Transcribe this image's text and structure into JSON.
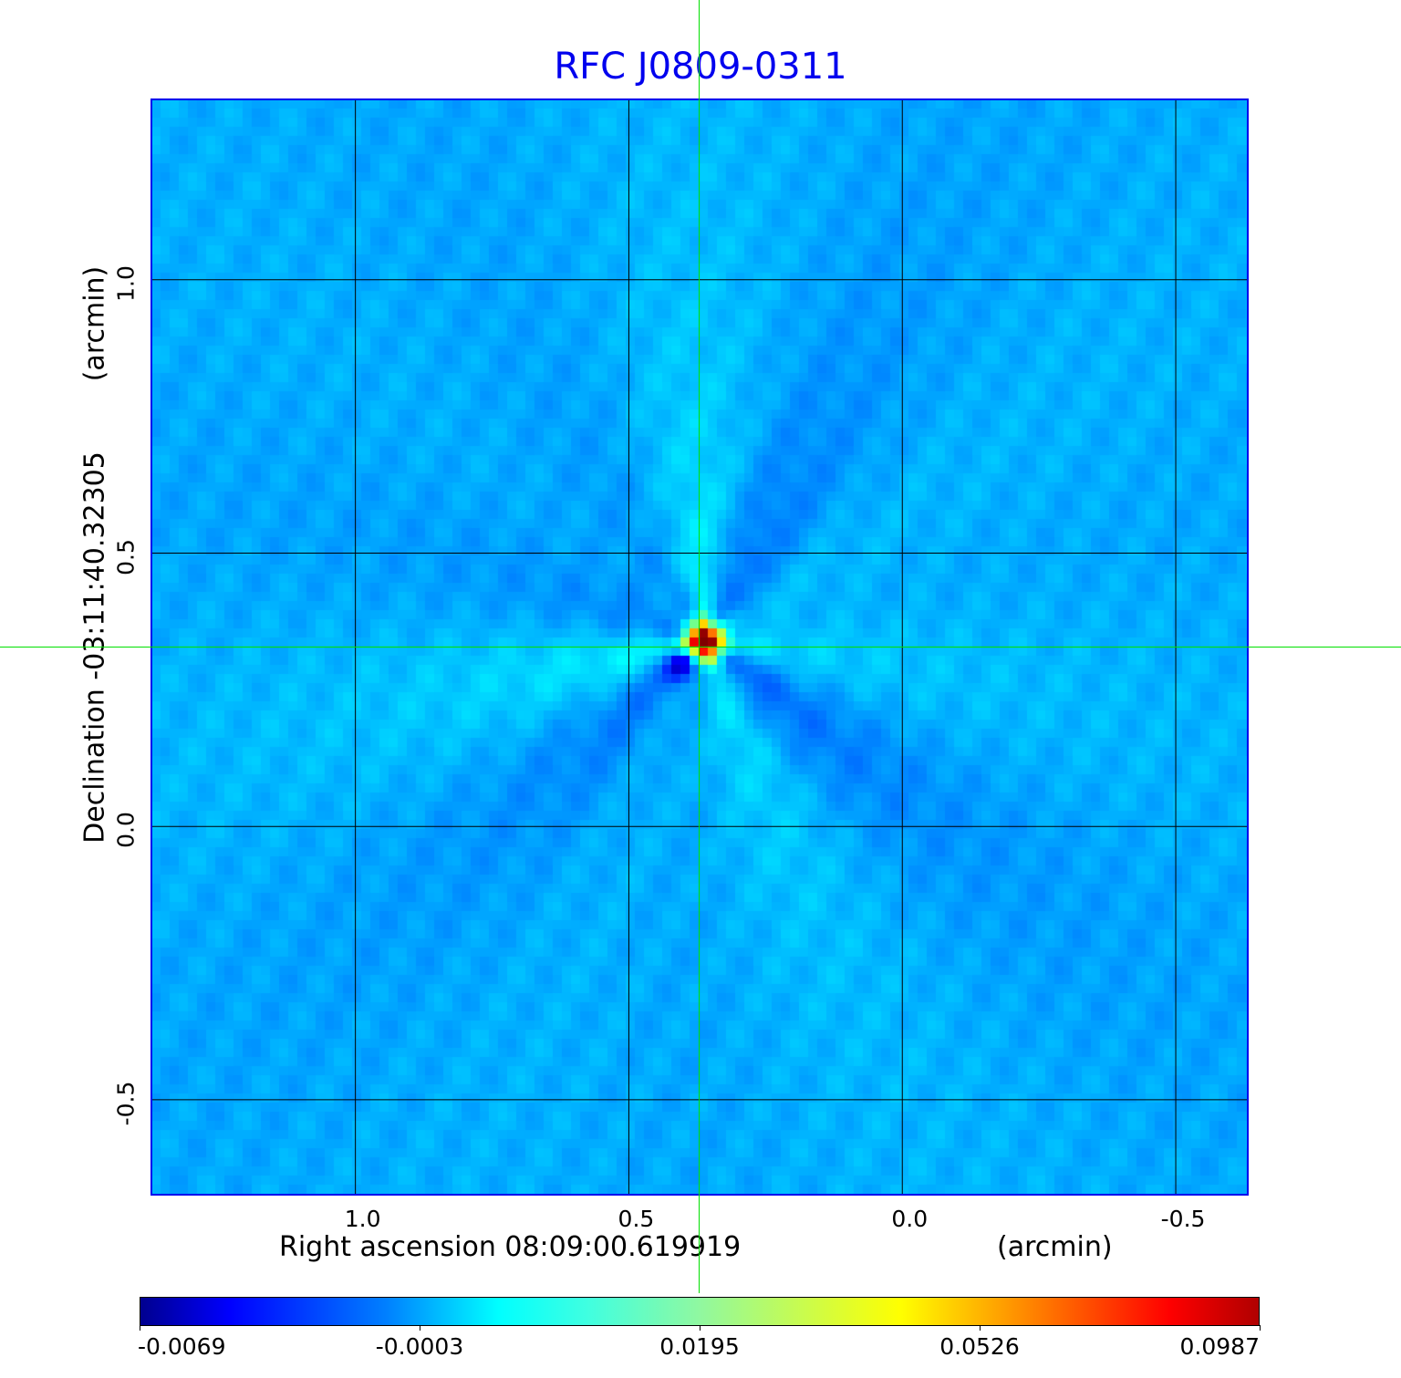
{
  "chart_data": {
    "type": "heatmap",
    "title": "RFC J0809-0311",
    "xlabel": "Right ascension  08:09:00.619919",
    "xunit": "(arcmin)",
    "ylabel": "Declination  -03:11:40.32305",
    "yunit": "(arcmin)",
    "xlim": [
      1.373,
      -0.63
    ],
    "ylim": [
      -0.672,
      1.33
    ],
    "xticks": [
      "1.0",
      "0.5",
      "0.0",
      "-0.5"
    ],
    "xtick_values": [
      1.0,
      0.5,
      0.0,
      -0.5
    ],
    "yticks": [
      "1.0",
      "0.5",
      "0.0",
      "-0.5"
    ],
    "ytick_values": [
      1.0,
      0.5,
      0.0,
      -0.5
    ],
    "grid": true,
    "colormap": "jet",
    "colorbar_ticks": [
      "-0.0069",
      "-0.0003",
      "0.0195",
      "0.0526",
      "0.0987"
    ],
    "colorbar_range": [
      -0.0069,
      0.0987
    ],
    "peak": {
      "x": 0.37,
      "y": 0.34,
      "value": 0.0987
    },
    "crosshair": {
      "x": 0.373,
      "y": 0.328
    },
    "colors": {
      "title": "#0000ee",
      "frame": "#0000ee",
      "crosshair": "#00e000",
      "background": "#0aa0f0"
    }
  }
}
